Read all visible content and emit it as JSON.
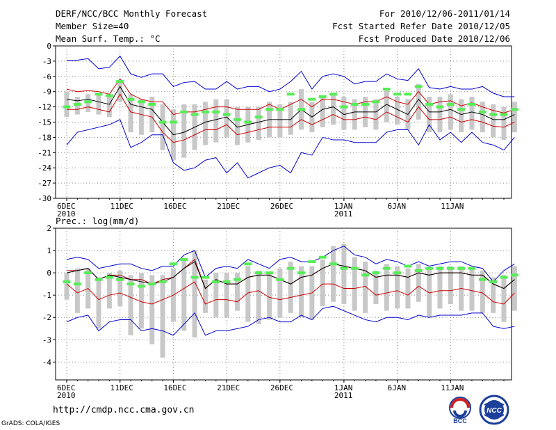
{
  "header": {
    "title": "DERF/NCC/BCC Monthly Forecast",
    "member": "Member Size=40",
    "variable": "Mean Surf. Temp.: °C",
    "period": "For 2010/12/06-2011/01/14",
    "refer_date": "Fcst Started Refer Date 2010/12/05",
    "produced_date": "Fcst Produced Date 2010/12/06"
  },
  "footer": {
    "url": "http://cmdp.ncc.cma.gov.cn",
    "grads": "GrADS: COLA/IGES",
    "logo_left_label": "BCC",
    "logo_right_label": "NCC"
  },
  "chart_data": [
    {
      "type": "line",
      "title": "",
      "ylabel": "Mean Surf. Temp.: °C",
      "ylim": [
        -30,
        0
      ],
      "yticks": [
        0,
        -3,
        -6,
        -9,
        -12,
        -15,
        -18,
        -21,
        -24,
        -27,
        -30
      ],
      "x_tick_labels": [
        {
          "day": 0,
          "label": "6DEC",
          "sub": "2010"
        },
        {
          "day": 5,
          "label": "11DEC",
          "sub": ""
        },
        {
          "day": 10,
          "label": "16DEC",
          "sub": ""
        },
        {
          "day": 15,
          "label": "21DEC",
          "sub": ""
        },
        {
          "day": 20,
          "label": "26DEC",
          "sub": ""
        },
        {
          "day": 26,
          "label": "1JAN",
          "sub": "2011"
        },
        {
          "day": 31,
          "label": "6JAN",
          "sub": ""
        },
        {
          "day": 36,
          "label": "11JAN",
          "sub": ""
        }
      ],
      "grid": true,
      "series": [
        {
          "name": "max",
          "color": "#0000cc",
          "values": [
            -2.8,
            -2.8,
            -2.5,
            -4.5,
            -4.2,
            -2.0,
            -5.5,
            -6.2,
            -5.5,
            -5.5,
            -8.0,
            -7.2,
            -7.0,
            -8.5,
            -8.5,
            -7.0,
            -8.5,
            -8.0,
            -8.0,
            -9.0,
            -8.5,
            -7.0,
            -5.0,
            -8.5,
            -6.0,
            -5.5,
            -6.0,
            -7.5,
            -7.0,
            -7.0,
            -5.5,
            -6.5,
            -6.8,
            -4.5,
            -8.2,
            -8.5,
            -8.0,
            -8.5,
            -8.5,
            -8.0,
            -9.3,
            -10.0,
            -10.0
          ]
        },
        {
          "name": "upper",
          "color": "#cc0000",
          "values": [
            -8.5,
            -9.0,
            -8.8,
            -9.0,
            -9.5,
            -6.5,
            -9.5,
            -10.5,
            -11.0,
            -11.0,
            -13.5,
            -13.0,
            -13.0,
            -12.5,
            -12.0,
            -12.0,
            -12.5,
            -12.5,
            -12.5,
            -11.5,
            -12.5,
            -11.5,
            -10.5,
            -12.0,
            -10.5,
            -10.5,
            -11.0,
            -11.5,
            -11.0,
            -11.0,
            -10.0,
            -11.0,
            -11.5,
            -9.0,
            -11.5,
            -11.0,
            -10.8,
            -11.8,
            -11.2,
            -12.0,
            -12.7,
            -13.2,
            -12.5
          ]
        },
        {
          "name": "mean",
          "color": "#000000",
          "values": [
            -10.5,
            -10.8,
            -10.5,
            -11.0,
            -11.5,
            -8.0,
            -11.5,
            -12.0,
            -12.5,
            -15.0,
            -17.5,
            -17.0,
            -16.0,
            -15.0,
            -14.5,
            -14.0,
            -16.0,
            -15.5,
            -15.0,
            -14.5,
            -14.5,
            -14.5,
            -12.5,
            -14.0,
            -12.5,
            -12.0,
            -13.5,
            -13.0,
            -13.0,
            -13.0,
            -11.5,
            -12.5,
            -13.5,
            -10.5,
            -13.0,
            -13.0,
            -12.5,
            -13.5,
            -13.0,
            -13.5,
            -14.5,
            -14.5,
            -13.5
          ]
        },
        {
          "name": "lower",
          "color": "#cc0000",
          "values": [
            -12.5,
            -12.5,
            -12.0,
            -12.5,
            -13.0,
            -9.5,
            -13.0,
            -13.5,
            -14.0,
            -17.0,
            -19.0,
            -18.5,
            -17.5,
            -16.5,
            -16.5,
            -15.5,
            -17.5,
            -17.0,
            -16.5,
            -16.0,
            -16.0,
            -16.0,
            -14.5,
            -15.5,
            -14.5,
            -13.5,
            -14.5,
            -14.5,
            -14.0,
            -14.5,
            -13.0,
            -14.0,
            -15.0,
            -12.0,
            -14.5,
            -14.5,
            -14.0,
            -15.0,
            -14.5,
            -15.0,
            -15.8,
            -16.0,
            -15.0
          ]
        },
        {
          "name": "min",
          "color": "#0000cc",
          "values": [
            -19.5,
            -17.0,
            -16.5,
            -16.0,
            -15.5,
            -14.5,
            -20.0,
            -19.0,
            -17.5,
            -17.5,
            -23.0,
            -24.5,
            -24.0,
            -22.5,
            -22.0,
            -25.0,
            -23.0,
            -26.0,
            -25.0,
            -24.0,
            -23.5,
            -25.0,
            -21.0,
            -21.5,
            -18.0,
            -18.5,
            -18.5,
            -19.0,
            -19.0,
            -19.0,
            -17.0,
            -16.5,
            -16.5,
            -19.5,
            -15.5,
            -18.5,
            -17.0,
            -19.0,
            -17.0,
            -19.0,
            -19.5,
            -20.5,
            -18.0
          ]
        }
      ],
      "bars": {
        "name": "range",
        "color": "#c8c8c8",
        "low": [
          -14.0,
          -13.5,
          -13.0,
          -13.5,
          -14.0,
          -11.0,
          -17.0,
          -17.5,
          -17.0,
          -20.5,
          -22.5,
          -22.0,
          -20.5,
          -19.5,
          -19.0,
          -18.0,
          -19.5,
          -19.0,
          -18.5,
          -18.0,
          -18.0,
          -17.5,
          -16.5,
          -17.0,
          -16.0,
          -15.5,
          -16.5,
          -16.5,
          -16.0,
          -16.5,
          -15.0,
          -15.5,
          -16.5,
          -14.5,
          -17.0,
          -17.0,
          -16.5,
          -17.0,
          -16.5,
          -17.0,
          -18.0,
          -18.5,
          -17.0
        ],
        "high": [
          -9.0,
          -10.0,
          -9.5,
          -9.5,
          -10.0,
          -7.0,
          -9.5,
          -10.5,
          -10.0,
          -11.5,
          -12.5,
          -11.5,
          -11.5,
          -11.0,
          -10.5,
          -10.5,
          -12.0,
          -12.0,
          -12.0,
          -11.0,
          -11.5,
          -11.0,
          -8.5,
          -11.0,
          -10.0,
          -9.5,
          -10.0,
          -10.5,
          -10.0,
          -10.5,
          -8.5,
          -10.0,
          -10.5,
          -7.5,
          -10.0,
          -10.0,
          -9.5,
          -10.5,
          -10.0,
          -11.0,
          -11.5,
          -12.0,
          -11.0
        ]
      },
      "markers": {
        "name": "reference",
        "color": "#55ee55",
        "values": [
          -12.0,
          -11.5,
          -11.0,
          -9.5,
          -9.8,
          -7.0,
          -10.5,
          -11.0,
          -11.5,
          -15.0,
          -15.0,
          -13.0,
          -13.5,
          -13.0,
          -13.0,
          -13.5,
          -14.5,
          -15.0,
          -14.0,
          -12.5,
          -12.5,
          -9.5,
          -12.5,
          -10.5,
          -10.0,
          -9.5,
          -12.0,
          -11.5,
          -11.5,
          -11.0,
          -8.5,
          -9.5,
          -9.5,
          -8.0,
          -11.5,
          -12.0,
          -11.5,
          -12.5,
          -11.5,
          -13.0,
          -13.5,
          -13.5,
          -12.5
        ]
      }
    },
    {
      "type": "line",
      "title": "Prec.: log(mm/d)",
      "ylabel": "Prec.: log(mm/d)",
      "ylim": [
        -4.8,
        2
      ],
      "yticks": [
        2,
        1,
        0,
        -1,
        -2,
        -3,
        -4
      ],
      "x_tick_labels": [
        {
          "day": 0,
          "label": "6DEC",
          "sub": "2010"
        },
        {
          "day": 5,
          "label": "11DEC",
          "sub": ""
        },
        {
          "day": 10,
          "label": "16DEC",
          "sub": ""
        },
        {
          "day": 15,
          "label": "21DEC",
          "sub": ""
        },
        {
          "day": 20,
          "label": "26DEC",
          "sub": ""
        },
        {
          "day": 26,
          "label": "1JAN",
          "sub": "2011"
        },
        {
          "day": 31,
          "label": "6JAN",
          "sub": ""
        },
        {
          "day": 36,
          "label": "11JAN",
          "sub": ""
        }
      ],
      "grid": true,
      "series": [
        {
          "name": "max",
          "color": "#0000cc",
          "values": [
            0.6,
            0.7,
            0.6,
            0.2,
            0.3,
            0.4,
            0.4,
            0.2,
            0.1,
            0.3,
            0.3,
            0.8,
            1.0,
            -0.2,
            0.2,
            0.3,
            0.2,
            0.6,
            0.4,
            0.2,
            0.6,
            0.7,
            0.5,
            0.5,
            0.7,
            1.0,
            1.2,
            0.8,
            0.7,
            0.4,
            0.6,
            0.5,
            0.3,
            0.5,
            0.3,
            0.4,
            0.5,
            0.5,
            0.3,
            0.2,
            -0.4,
            0.1,
            0.4
          ]
        },
        {
          "name": "upper",
          "color": "#aa0000",
          "values": [
            0.1,
            0.1,
            0.2,
            -0.3,
            -0.1,
            -0.1,
            -0.3,
            -0.3,
            -0.5,
            -0.3,
            -0.2,
            0.2,
            0.6,
            -0.7,
            -0.3,
            -0.5,
            -0.5,
            -0.2,
            -0.1,
            -0.1,
            -0.3,
            -0.5,
            -0.2,
            -0.1,
            0.2,
            0.4,
            0.3,
            0.2,
            0.1,
            -0.2,
            -0.1,
            -0.1,
            -0.2,
            0.0,
            -0.1,
            0.0,
            0.0,
            0.0,
            -0.1,
            -0.1,
            -0.5,
            -0.7,
            -0.3
          ]
        },
        {
          "name": "mean",
          "color": "#000000",
          "values": [
            0.0,
            0.1,
            0.2,
            -0.3,
            -0.1,
            -0.2,
            -0.3,
            -0.4,
            -0.5,
            -0.4,
            -0.2,
            0.2,
            0.5,
            -0.7,
            -0.3,
            -0.5,
            -0.5,
            -0.2,
            -0.1,
            -0.1,
            -0.3,
            -0.5,
            -0.2,
            -0.1,
            0.2,
            0.4,
            0.3,
            0.2,
            0.1,
            -0.2,
            -0.1,
            -0.1,
            -0.2,
            0.0,
            -0.1,
            0.0,
            0.0,
            0.0,
            -0.1,
            -0.1,
            -0.5,
            -0.7,
            -0.3
          ]
        },
        {
          "name": "lower",
          "color": "#cc0000",
          "values": [
            -0.5,
            -0.9,
            -0.7,
            -1.2,
            -1.0,
            -0.9,
            -1.1,
            -1.3,
            -1.4,
            -1.2,
            -1.0,
            -0.7,
            -0.4,
            -1.4,
            -1.2,
            -1.2,
            -1.3,
            -0.9,
            -0.8,
            -1.1,
            -1.2,
            -1.1,
            -1.0,
            -0.9,
            -0.5,
            -0.5,
            -0.7,
            -0.7,
            -0.6,
            -1.0,
            -0.9,
            -0.8,
            -1.0,
            -0.6,
            -0.9,
            -0.8,
            -0.8,
            -0.7,
            -0.8,
            -0.9,
            -1.3,
            -1.4,
            -0.9
          ]
        },
        {
          "name": "min",
          "color": "#0000cc",
          "values": [
            -2.2,
            -2.0,
            -1.9,
            -2.6,
            -2.2,
            -2.1,
            -2.1,
            -2.6,
            -2.5,
            -2.6,
            -2.8,
            -2.3,
            -1.8,
            -2.8,
            -2.6,
            -2.6,
            -2.5,
            -2.4,
            -2.1,
            -2.0,
            -2.2,
            -2.2,
            -1.9,
            -2.1,
            -1.6,
            -1.5,
            -1.7,
            -1.9,
            -2.1,
            -2.2,
            -2.0,
            -2.0,
            -2.1,
            -1.9,
            -2.0,
            -1.9,
            -1.9,
            -1.9,
            -1.8,
            -1.8,
            -2.4,
            -2.5,
            -2.4
          ]
        },
        {
          "name": "max_line",
          "color": "#0000cc",
          "values": []
        }
      ],
      "bars": {
        "name": "range",
        "color": "#c8c8c8",
        "low": [
          -1.2,
          -1.8,
          -1.6,
          -2.5,
          -1.6,
          -1.5,
          -2.8,
          -2.5,
          -3.2,
          -3.8,
          -2.2,
          -2.6,
          -2.9,
          -1.8,
          -2.0,
          -2.0,
          -1.7,
          -2.2,
          -2.3,
          -2.1,
          -2.0,
          -1.8,
          -2.0,
          -2.1,
          -1.5,
          -1.3,
          -1.4,
          -1.7,
          -1.8,
          -1.4,
          -1.7,
          -1.6,
          -1.6,
          -1.3,
          -2.0,
          -1.6,
          -1.4,
          -1.7,
          -1.7,
          -1.8,
          -1.8,
          -2.2,
          -1.7
        ],
        "high": [
          0.0,
          0.2,
          0.2,
          -0.2,
          0.0,
          0.1,
          -0.1,
          0.0,
          -0.1,
          -0.1,
          0.2,
          0.6,
          1.0,
          -0.3,
          0.0,
          0.0,
          0.0,
          0.3,
          0.1,
          0.0,
          0.2,
          0.5,
          0.3,
          0.3,
          0.6,
          1.2,
          1.3,
          0.7,
          0.5,
          0.1,
          0.4,
          0.3,
          0.2,
          0.4,
          0.2,
          0.3,
          0.3,
          0.3,
          0.2,
          0.1,
          -0.2,
          -0.1,
          0.3
        ]
      },
      "markers": {
        "name": "reference",
        "color": "#55ee55",
        "values": [
          -0.4,
          -0.5,
          0.0,
          -0.3,
          -0.2,
          -0.3,
          -0.5,
          -0.6,
          -0.5,
          -0.4,
          0.4,
          0.6,
          -0.2,
          -0.2,
          -0.4,
          -0.4,
          -0.3,
          0.4,
          0.0,
          0.0,
          -0.3,
          0.2,
          0.0,
          0.5,
          0.7,
          0.4,
          0.2,
          0.2,
          -0.1,
          0.0,
          0.2,
          0.0,
          0.3,
          0.1,
          0.2,
          0.2,
          0.2,
          0.2,
          0.2,
          -0.3,
          -0.4,
          -0.2,
          -0.1
        ]
      }
    }
  ]
}
